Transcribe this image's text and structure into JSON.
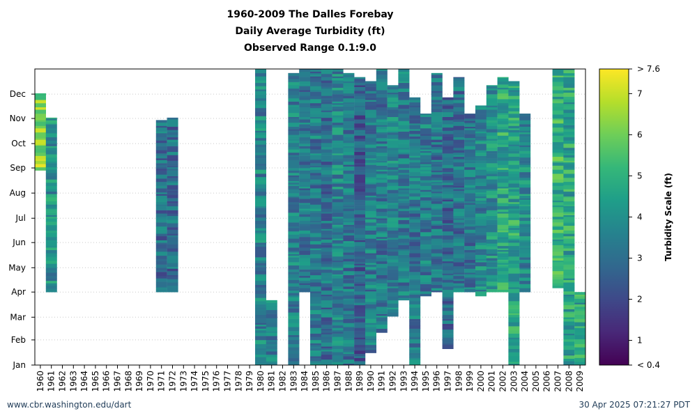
{
  "chart_data": {
    "type": "heatmap",
    "title": "1960-2009 The Dalles Forebay",
    "subtitle": "Daily Average Turbidity (ft)",
    "subtitle2": "Observed Range 0.1:9.0",
    "x_labels": [
      "1960",
      "1961",
      "1962",
      "1963",
      "1964",
      "1965",
      "1966",
      "1967",
      "1968",
      "1969",
      "1970",
      "1971",
      "1972",
      "1973",
      "1974",
      "1975",
      "1976",
      "1977",
      "1978",
      "1979",
      "1980",
      "1981",
      "1982",
      "1983",
      "1984",
      "1985",
      "1986",
      "1987",
      "1988",
      "1989",
      "1990",
      "1991",
      "1992",
      "1993",
      "1994",
      "1995",
      "1996",
      "1997",
      "1998",
      "1999",
      "2000",
      "2001",
      "2002",
      "2003",
      "2004",
      "2005",
      "2006",
      "2007",
      "2008",
      "2009"
    ],
    "y_labels": [
      "Jan",
      "Feb",
      "Mar",
      "Apr",
      "May",
      "Jun",
      "Jul",
      "Aug",
      "Sep",
      "Oct",
      "Nov",
      "Dec"
    ],
    "colorbar": {
      "label": "Turbidity Scale (ft)",
      "min": 0.4,
      "max": 7.6,
      "ticks": [
        "< 0.4",
        "1",
        "2",
        "3",
        "4",
        "5",
        "6",
        "7",
        "> 7.6"
      ],
      "colors": [
        "#440154",
        "#482878",
        "#3e4989",
        "#31688e",
        "#26828e",
        "#1f9e89",
        "#35b779",
        "#6ece58",
        "#b5de2b",
        "#fde725"
      ]
    },
    "coverage_days": [
      {
        "year": "1960",
        "start": 240,
        "end": 335,
        "mean": 6.2
      },
      {
        "year": "1961",
        "start": 90,
        "end": 305,
        "mean": 4.0
      },
      {
        "year": "1971",
        "start": 90,
        "end": 302,
        "mean": 3.0
      },
      {
        "year": "1972",
        "start": 90,
        "end": 305,
        "mean": 3.0
      },
      {
        "year": "1980",
        "start": 0,
        "end": 365,
        "mean": 3.6
      },
      {
        "year": "1981",
        "start": 0,
        "end": 80,
        "mean": 3.5
      },
      {
        "year": "1983",
        "start": 0,
        "end": 360,
        "mean": 3.6
      },
      {
        "year": "1984",
        "start": 90,
        "end": 365,
        "mean": 3.3
      },
      {
        "year": "1985",
        "start": 0,
        "end": 365,
        "mean": 3.4
      },
      {
        "year": "1986",
        "start": 0,
        "end": 365,
        "mean": 3.1
      },
      {
        "year": "1987",
        "start": 0,
        "end": 365,
        "mean": 3.7
      },
      {
        "year": "1988",
        "start": 0,
        "end": 360,
        "mean": 3.3
      },
      {
        "year": "1989",
        "start": 0,
        "end": 355,
        "mean": 2.6
      },
      {
        "year": "1990",
        "start": 15,
        "end": 350,
        "mean": 3.4
      },
      {
        "year": "1991",
        "start": 40,
        "end": 365,
        "mean": 3.3
      },
      {
        "year": "1992",
        "start": 60,
        "end": 345,
        "mean": 3.6
      },
      {
        "year": "1993",
        "start": 80,
        "end": 365,
        "mean": 3.4
      },
      {
        "year": "1994",
        "start": 0,
        "end": 330,
        "mean": 3.3
      },
      {
        "year": "1995",
        "start": 85,
        "end": 310,
        "mean": 3.4
      },
      {
        "year": "1996",
        "start": 90,
        "end": 360,
        "mean": 3.2
      },
      {
        "year": "1997",
        "start": 20,
        "end": 330,
        "mean": 2.9
      },
      {
        "year": "1998",
        "start": 90,
        "end": 355,
        "mean": 3.1
      },
      {
        "year": "1999",
        "start": 90,
        "end": 310,
        "mean": 3.2
      },
      {
        "year": "2000",
        "start": 85,
        "end": 320,
        "mean": 3.7
      },
      {
        "year": "2001",
        "start": 90,
        "end": 345,
        "mean": 4.0
      },
      {
        "year": "2002",
        "start": 90,
        "end": 355,
        "mean": 4.6
      },
      {
        "year": "2003",
        "start": 0,
        "end": 350,
        "mean": 4.6
      },
      {
        "year": "2004",
        "start": 90,
        "end": 310,
        "mean": 3.8
      },
      {
        "year": "2007",
        "start": 95,
        "end": 365,
        "mean": 5.0
      },
      {
        "year": "2008",
        "start": 0,
        "end": 365,
        "mean": 4.6
      },
      {
        "year": "2009",
        "start": 0,
        "end": 90,
        "mean": 4.6
      }
    ]
  },
  "footer": {
    "left": "www.cbr.washington.edu/dart",
    "right": "30 Apr 2025 07:21:27 PDT"
  }
}
